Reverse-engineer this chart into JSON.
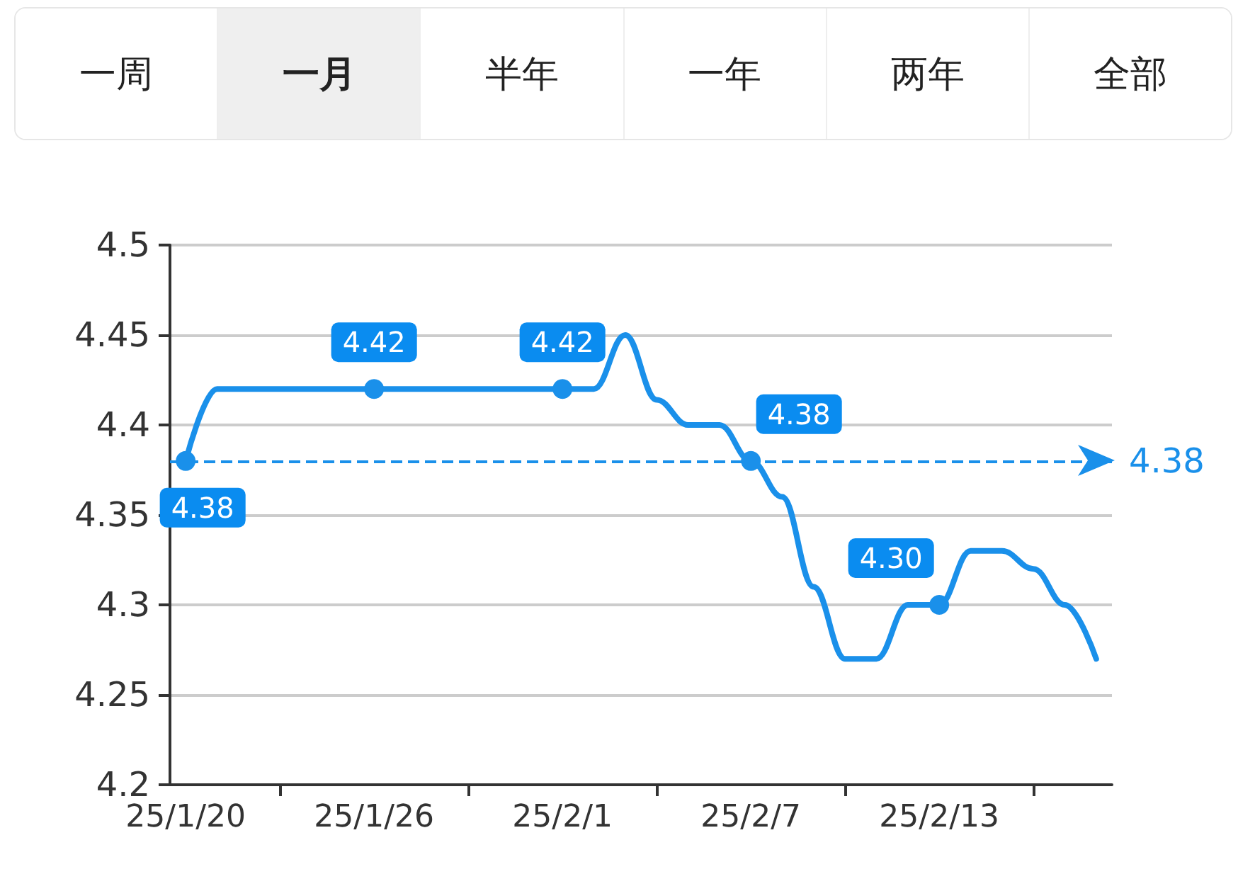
{
  "chart_data": {
    "type": "line",
    "annotations": [
      "一周",
      "一月",
      "半年",
      "一年",
      "两年",
      "全部"
    ],
    "categories": [
      "25/1/20",
      null,
      null,
      null,
      null,
      null,
      "25/1/26",
      null,
      null,
      null,
      null,
      null,
      "25/2/1",
      null,
      null,
      null,
      null,
      null,
      "25/2/7",
      null,
      null,
      null,
      null,
      null,
      "25/2/13",
      null,
      null,
      null,
      null,
      null
    ],
    "series": [
      {
        "color": "#1a90ea",
        "values": [
          4.38,
          4.42,
          4.42,
          4.42,
          4.42,
          4.42,
          4.42,
          4.42,
          4.42,
          4.42,
          4.42,
          4.42,
          4.42,
          4.42,
          4.45,
          4.414,
          4.4,
          4.4,
          4.38,
          4.36,
          4.31,
          4.27,
          4.27,
          4.3,
          4.3,
          4.33,
          4.33,
          4.32,
          4.3,
          4.27
        ],
        "value_labels": [
          "4.38",
          null,
          null,
          null,
          null,
          null,
          "4.42",
          null,
          null,
          null,
          null,
          null,
          "4.42",
          null,
          null,
          null,
          null,
          null,
          "4.38",
          null,
          null,
          null,
          null,
          null,
          "4.30",
          null,
          null,
          null,
          null,
          null
        ]
      }
    ],
    "ylim": [
      4.2,
      4.5
    ],
    "yticks": [
      4.2,
      4.25,
      4.3,
      4.35,
      4.4,
      4.45,
      4.5
    ],
    "ref_lines": [
      {
        "axis": "y",
        "value": 4.38,
        "label": "4.38",
        "color": "#1a90ea",
        "line_style": "dashed"
      }
    ],
    "grid": "y",
    "line_style": "solid"
  }
}
